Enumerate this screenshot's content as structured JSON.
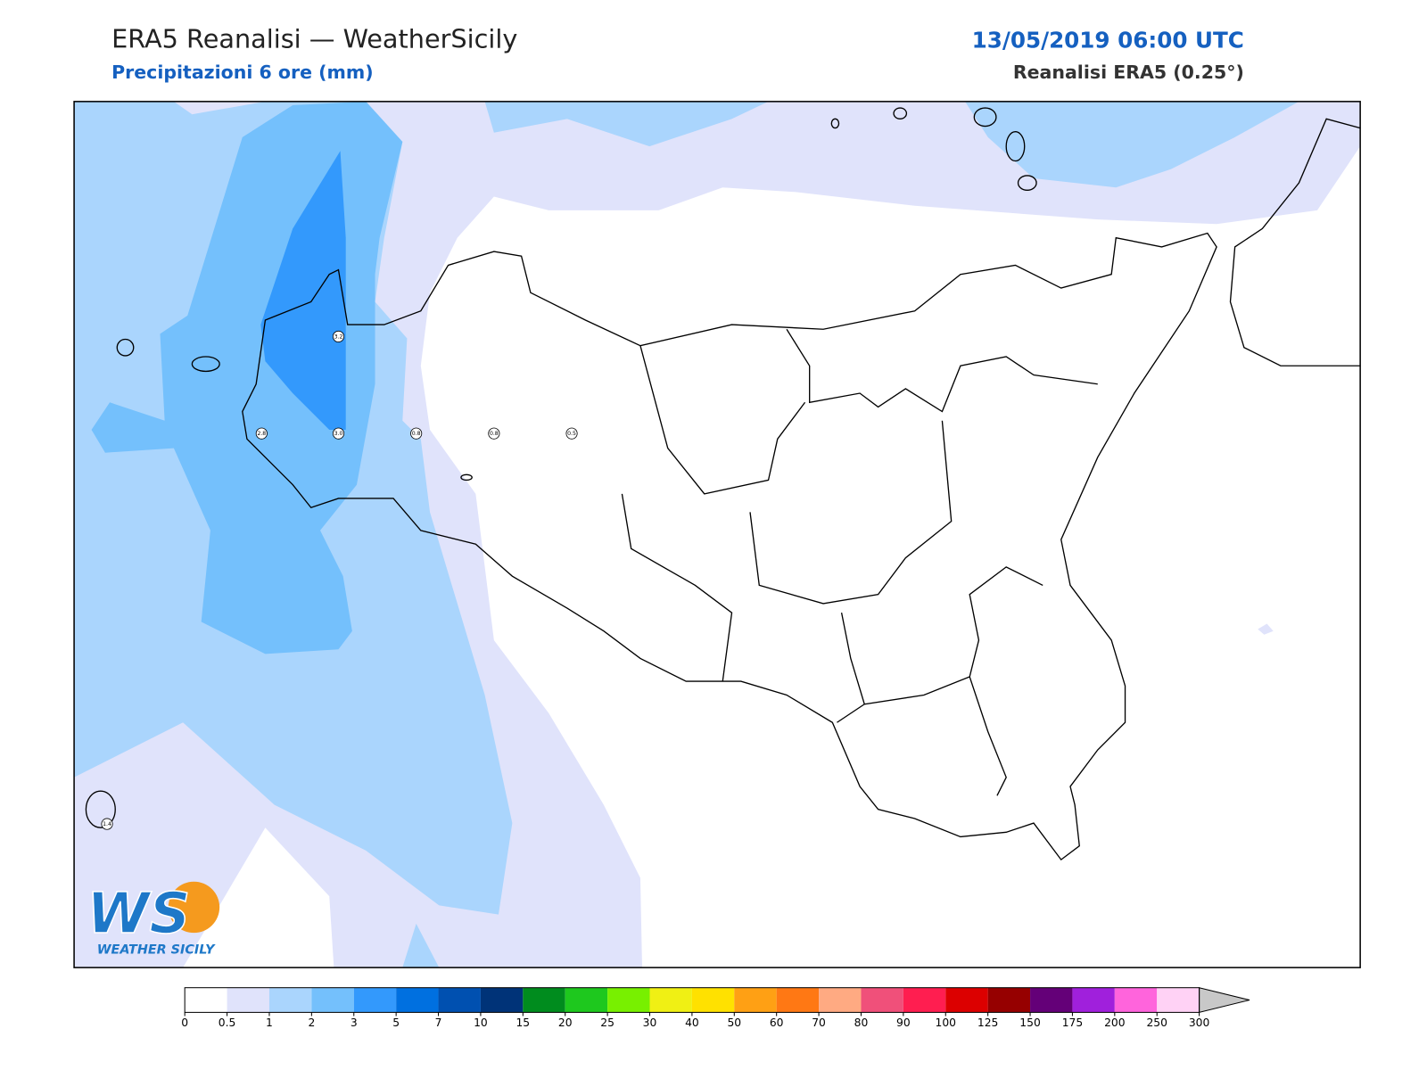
{
  "header": {
    "title": "ERA5 Reanalisi — WeatherSicily",
    "subtitle": "Precipitazioni 6 ore (mm)",
    "datetime": "13/05/2019 06:00 UTC",
    "source": "Reanalisi ERA5 (0.25°)"
  },
  "stations": [
    "3.2",
    "2.8",
    "3.0",
    "0.8",
    "0.8",
    "0.5",
    "1.4"
  ],
  "logo": {
    "mark": "WS",
    "text": "WEATHER SICILY"
  },
  "colorbar": {
    "levels": [
      0,
      0.5,
      1,
      2,
      3,
      5,
      7,
      10,
      15,
      20,
      25,
      30,
      40,
      50,
      60,
      70,
      80,
      90,
      100,
      125,
      150,
      175,
      200,
      250,
      300
    ],
    "colors": [
      "#ffffff",
      "#e0e3fb",
      "#aad5fd",
      "#74c0fc",
      "#3399fc",
      "#0070e0",
      "#0050b0",
      "#003378",
      "#008c1e",
      "#1ec81e",
      "#78f000",
      "#f0f014",
      "#ffe100",
      "#ffa014",
      "#ff7814",
      "#ffaa82",
      "#f0507a",
      "#ff1e50",
      "#dc0000",
      "#960000",
      "#640078",
      "#a020dc",
      "#ff64dc",
      "#ffd2f5"
    ],
    "extend_color": "#c8c8c8"
  }
}
